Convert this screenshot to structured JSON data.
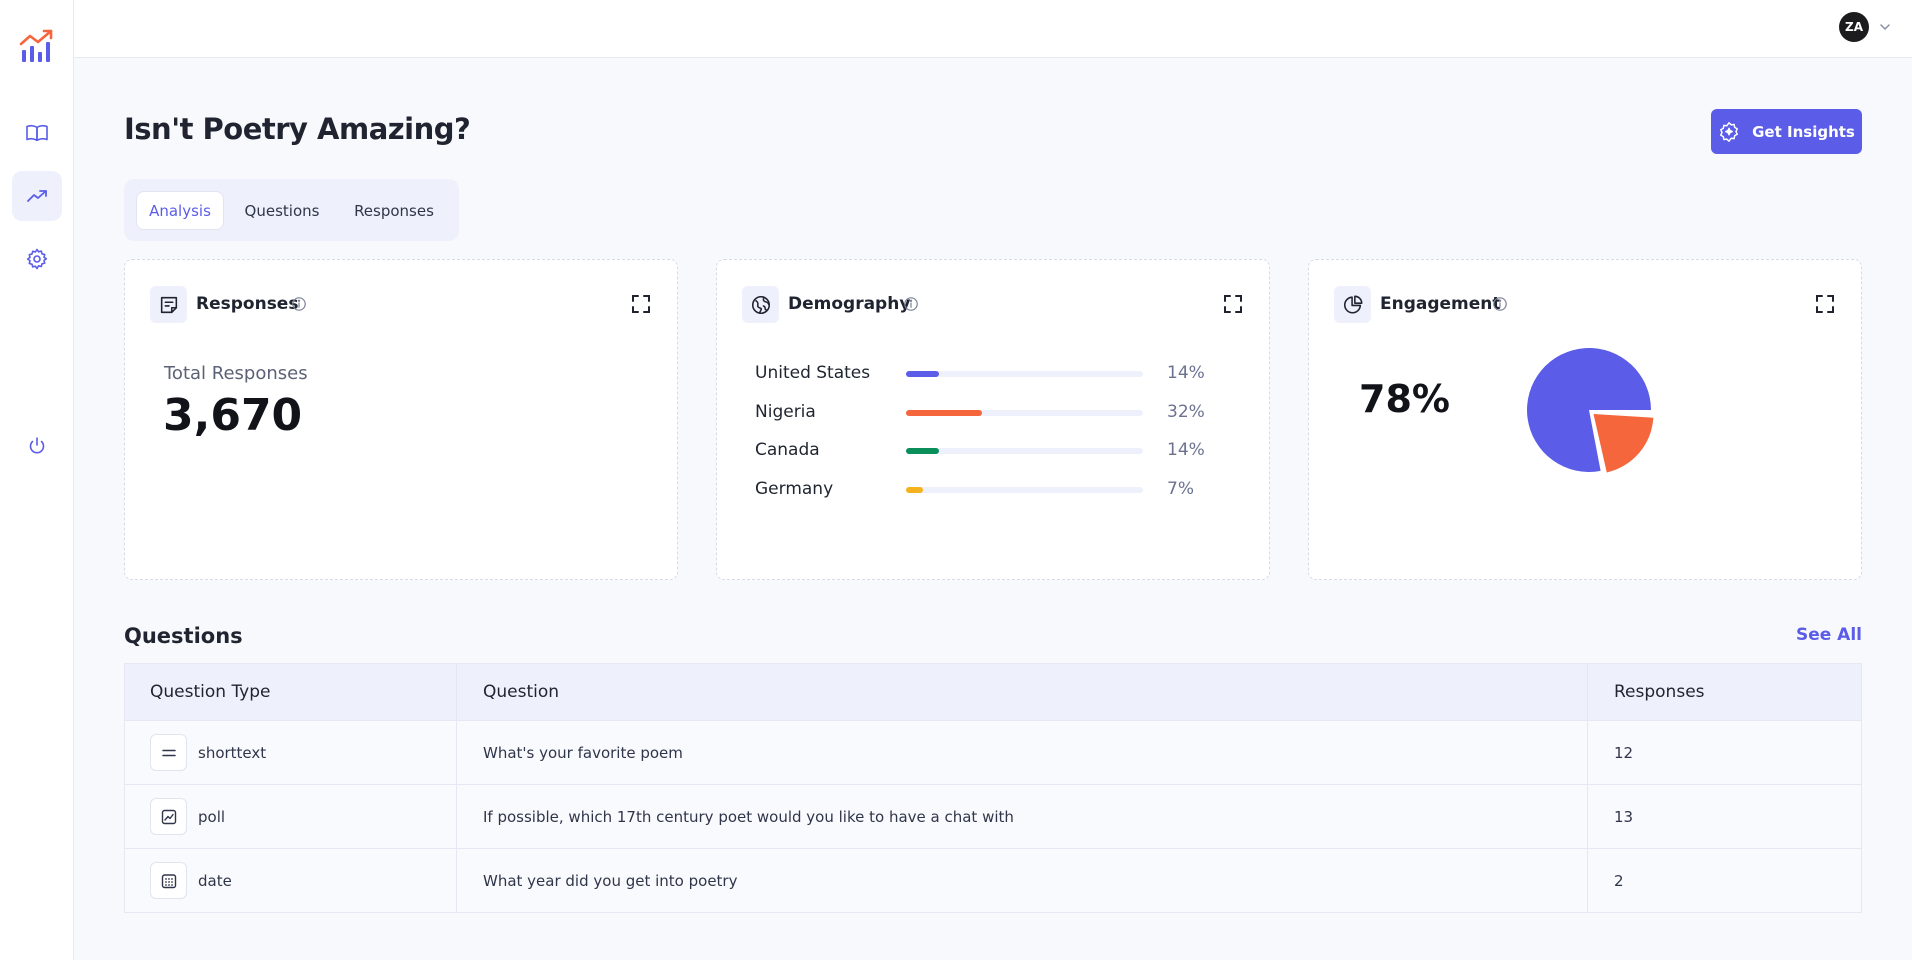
{
  "header": {
    "avatar_initials": "ZA"
  },
  "sidebar": {
    "items": [
      {
        "icon": "book-icon"
      },
      {
        "icon": "trending-up-icon",
        "active": true
      },
      {
        "icon": "gear-icon"
      },
      {
        "icon": "power-icon"
      }
    ]
  },
  "page": {
    "title": "Isn't Poetry Amazing?",
    "insights_button": "Get Insights"
  },
  "tabs": [
    {
      "label": "Analysis",
      "active": true
    },
    {
      "label": "Questions"
    },
    {
      "label": "Responses"
    }
  ],
  "cards": {
    "responses": {
      "title": "Responses",
      "total_label": "Total Responses",
      "total_value": "3,670"
    },
    "demography": {
      "title": "Demography",
      "rows": [
        {
          "country": "United States",
          "pct_label": "14%",
          "fraction": 0.14,
          "color": "#5b5de8"
        },
        {
          "country": "Nigeria",
          "pct_label": "32%",
          "fraction": 0.32,
          "color": "#f6663c"
        },
        {
          "country": "Canada",
          "pct_label": "14%",
          "fraction": 0.14,
          "color": "#0a8f5a"
        },
        {
          "country": "Germany",
          "pct_label": "7%",
          "fraction": 0.07,
          "color": "#f6b21d"
        }
      ]
    },
    "engagement": {
      "title": "Engagement",
      "value": "78%",
      "fraction": 0.78,
      "colors": [
        "#5b5de8",
        "#f6663c"
      ]
    }
  },
  "questions": {
    "title": "Questions",
    "see_all": "See All",
    "columns": [
      "Question Type",
      "Question",
      "Responses"
    ],
    "rows": [
      {
        "type": "shorttext",
        "icon": "equals-icon",
        "question": "What's your favorite poem",
        "responses": "12"
      },
      {
        "type": "poll",
        "icon": "chart-line-icon",
        "question": "If possible, which 17th century poet would you like to have a chat with",
        "responses": "13"
      },
      {
        "type": "date",
        "icon": "calendar-icon",
        "question": "What year did you get into poetry",
        "responses": "2"
      }
    ]
  }
}
